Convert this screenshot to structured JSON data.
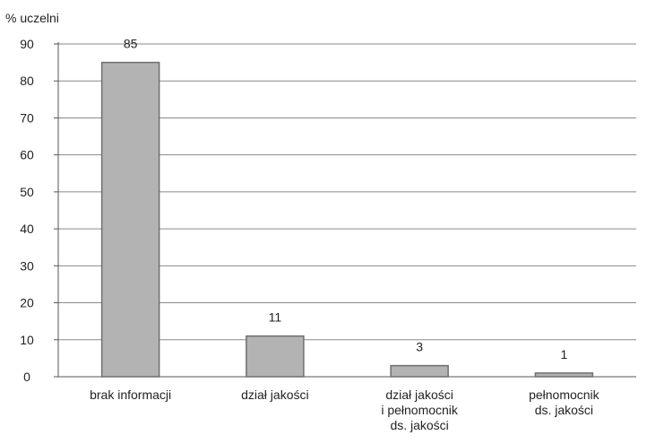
{
  "chart_data": {
    "type": "bar",
    "ylabel": "% uczelni",
    "xlabel": "",
    "title": "",
    "ylim": [
      0,
      90
    ],
    "y_ticks": [
      0,
      10,
      20,
      30,
      40,
      50,
      60,
      70,
      80,
      90
    ],
    "grid": true,
    "legend": "none",
    "bar_color": "#b3b3b3",
    "bar_edge_color": "#6f6f6f",
    "categories": [
      [
        "brak informacji"
      ],
      [
        "dział jakości"
      ],
      [
        "dział jakości",
        "i pełnomocnik",
        "ds. jakości"
      ],
      [
        "pełnomocnik",
        "ds. jakości"
      ]
    ],
    "values": [
      85,
      11,
      3,
      1
    ]
  }
}
